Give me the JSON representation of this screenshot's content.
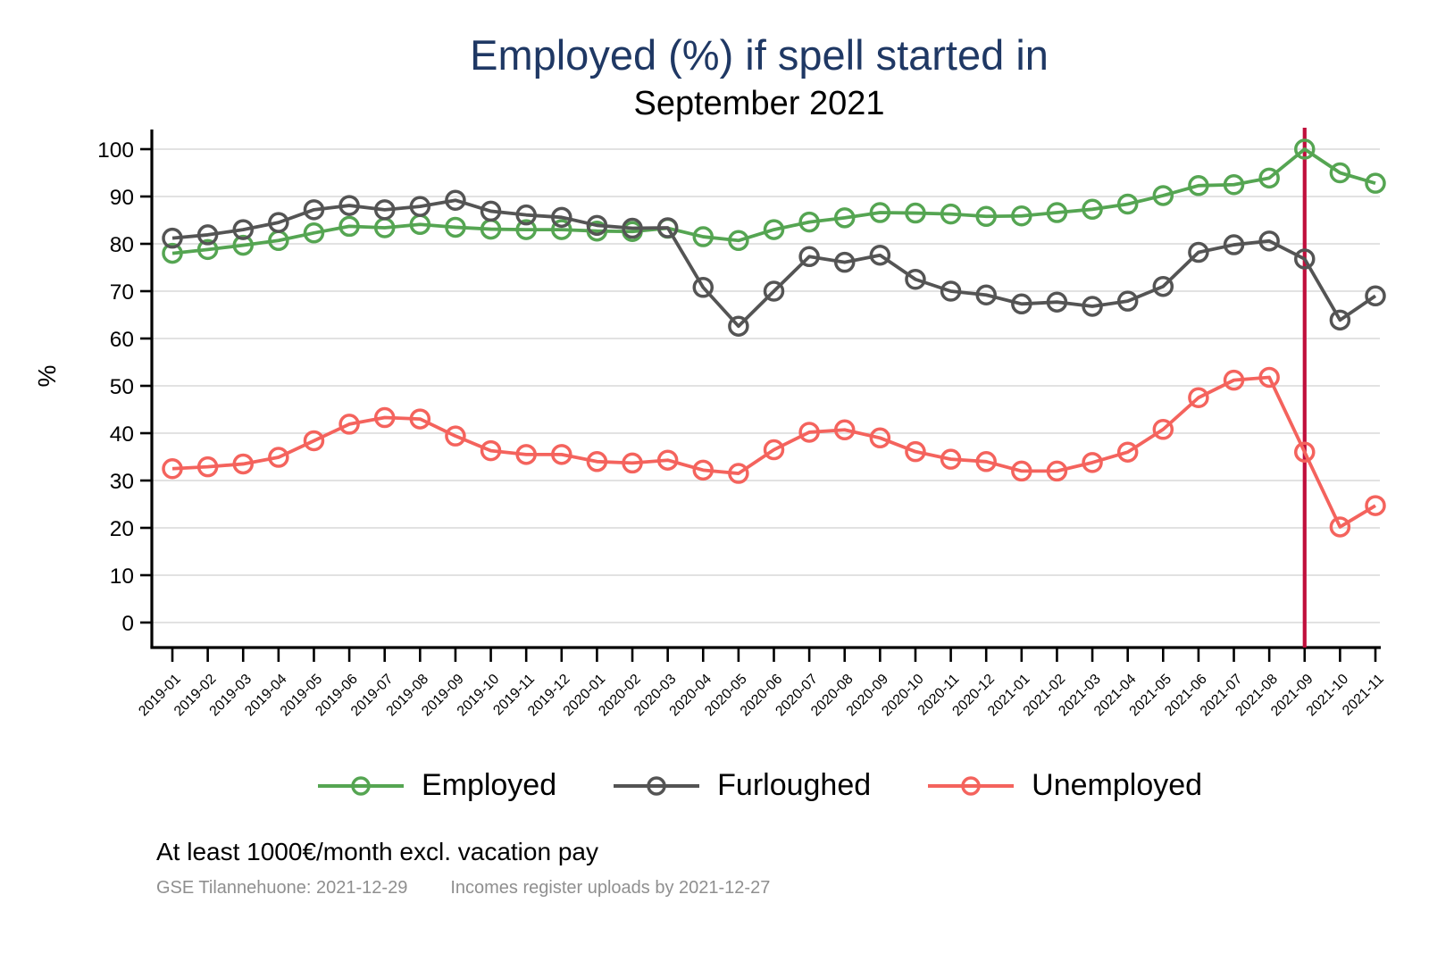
{
  "title": "Employed (%) if spell started in",
  "subtitle": "September 2021",
  "title_color": "#1f3864",
  "chart_data": {
    "type": "line",
    "x": [
      "2019-01",
      "2019-02",
      "2019-03",
      "2019-04",
      "2019-05",
      "2019-06",
      "2019-07",
      "2019-08",
      "2019-09",
      "2019-10",
      "2019-11",
      "2019-12",
      "2020-01",
      "2020-02",
      "2020-03",
      "2020-04",
      "2020-05",
      "2020-06",
      "2020-07",
      "2020-08",
      "2020-09",
      "2020-10",
      "2020-11",
      "2020-12",
      "2021-01",
      "2021-02",
      "2021-03",
      "2021-04",
      "2021-05",
      "2021-06",
      "2021-07",
      "2021-08",
      "2021-09",
      "2021-10",
      "2021-11"
    ],
    "series": [
      {
        "name": "Employed",
        "color": "#55a552",
        "values": [
          78.0,
          78.8,
          79.7,
          80.7,
          82.3,
          83.7,
          83.4,
          84.1,
          83.5,
          83.1,
          83.0,
          83.0,
          82.7,
          82.6,
          83.3,
          81.5,
          80.7,
          83.0,
          84.6,
          85.5,
          86.6,
          86.5,
          86.3,
          85.8,
          85.9,
          86.6,
          87.3,
          88.4,
          90.2,
          92.3,
          92.5,
          93.9,
          100.0,
          95.0,
          92.8
        ]
      },
      {
        "name": "Furloughed",
        "color": "#545454",
        "values": [
          81.2,
          81.9,
          83.0,
          84.5,
          87.2,
          88.1,
          87.2,
          87.9,
          89.2,
          86.9,
          86.1,
          85.6,
          83.9,
          83.3,
          83.4,
          70.8,
          62.6,
          70.0,
          77.3,
          76.1,
          77.6,
          72.5,
          70.0,
          69.2,
          67.3,
          67.7,
          66.8,
          67.9,
          71.0,
          78.2,
          79.8,
          80.6,
          76.8,
          63.9,
          69.0
        ]
      },
      {
        "name": "Unemployed",
        "color": "#f4635d",
        "values": [
          32.5,
          32.9,
          33.5,
          34.9,
          38.4,
          41.9,
          43.3,
          43.0,
          39.4,
          36.3,
          35.5,
          35.5,
          34.0,
          33.7,
          34.3,
          32.2,
          31.5,
          36.5,
          40.2,
          40.7,
          39.0,
          36.1,
          34.5,
          34.0,
          32.0,
          32.0,
          33.8,
          36.0,
          40.8,
          47.5,
          51.2,
          51.8,
          36.0,
          20.2,
          24.7
        ]
      }
    ],
    "ylabel": "%",
    "ylim": [
      0,
      100
    ],
    "yticks": [
      0,
      10,
      20,
      30,
      40,
      50,
      60,
      70,
      80,
      90,
      100
    ],
    "grid": "horizontal",
    "legend_position": "bottom-center",
    "refline": {
      "at_x": "2021-09",
      "orientation": "vertical",
      "color": "#c00f3c"
    }
  },
  "footer": {
    "note": "At least 1000€/month excl. vacation pay",
    "credit_left": "GSE Tilannehuone: 2021-12-29",
    "credit_right": "Incomes register uploads by 2021-12-27"
  },
  "colors": {
    "grid": "#d9d9d9",
    "axis": "#000000",
    "background": "#ffffff"
  }
}
